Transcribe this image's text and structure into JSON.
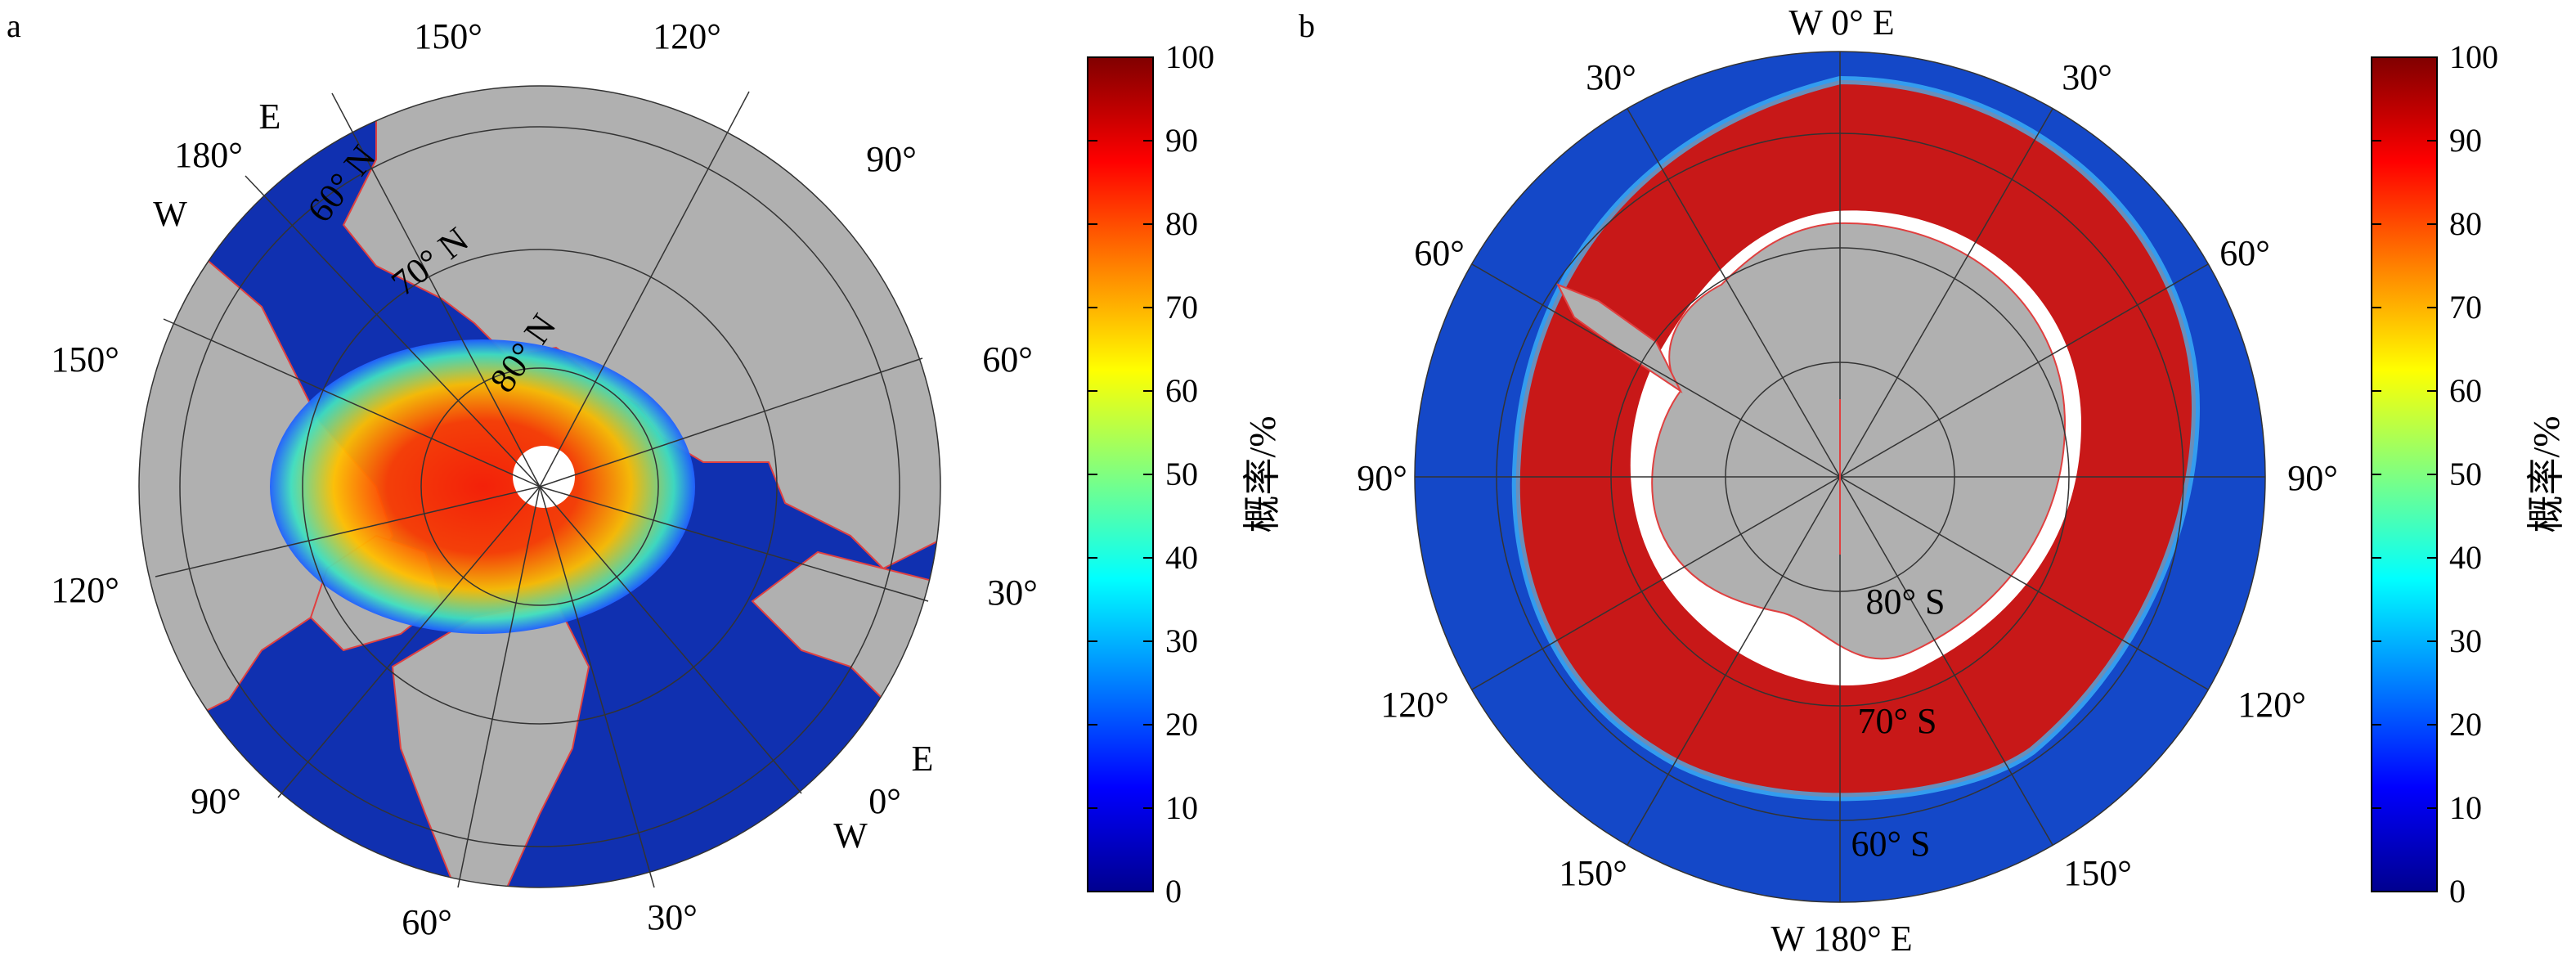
{
  "panels": {
    "a": {
      "letter": "a",
      "longitude_labels": [
        "150°",
        "120°",
        "90°",
        "60°",
        "30°",
        "0°",
        "180°",
        "150°",
        "120°",
        "90°",
        "60°",
        "30°"
      ],
      "latitude_labels": [
        "60° N",
        "70° N",
        "80° N"
      ],
      "hemisphere_markers": {
        "east_top": "E",
        "west_top": "W",
        "east_bottom": "E",
        "west_bottom": "W"
      }
    },
    "b": {
      "letter": "b",
      "top_label": "W 0° E",
      "bottom_label": "W 180° E",
      "longitude_labels": [
        "30°",
        "30°",
        "60°",
        "60°",
        "90°",
        "90°",
        "120°",
        "120°",
        "150°",
        "150°"
      ],
      "latitude_labels": [
        "80° S",
        "70° S",
        "60° S"
      ]
    }
  },
  "colorbar": {
    "title": "概率/%",
    "ticks": [
      "100",
      "90",
      "80",
      "70",
      "60",
      "50",
      "40",
      "30",
      "20",
      "10",
      "0"
    ],
    "min": 0,
    "max": 100,
    "colormap": "jet",
    "stops": [
      "#00008f",
      "#0000ff",
      "#0080ff",
      "#00ffff",
      "#80ff80",
      "#ffff00",
      "#ff8000",
      "#ff0000",
      "#800000"
    ]
  },
  "colors": {
    "land": "#b0b0b0",
    "coastline": "#e04040",
    "grid": "#333333",
    "low_prob": "#1030b0",
    "high_prob": "#c01818"
  }
}
